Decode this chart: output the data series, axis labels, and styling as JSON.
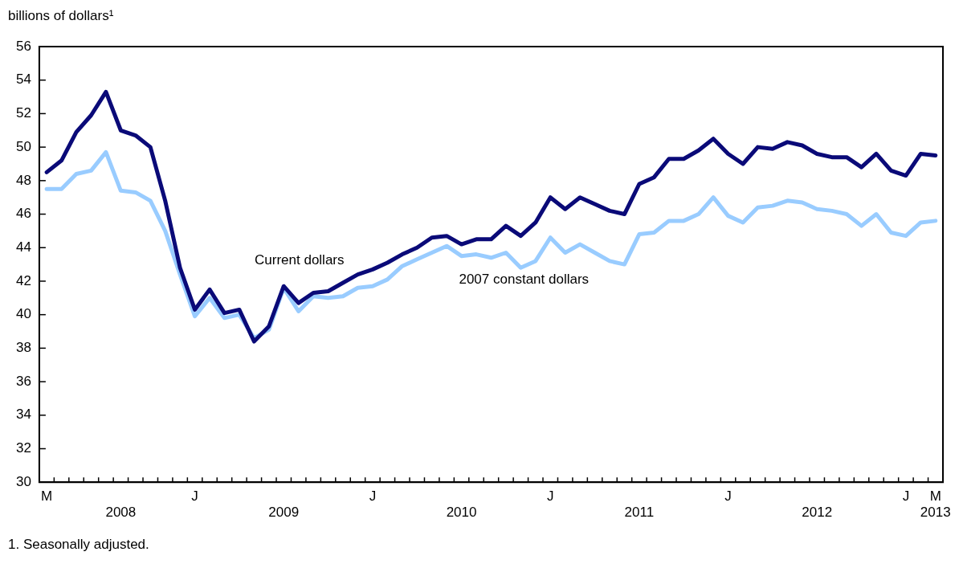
{
  "chart_data": {
    "type": "line",
    "ylabel": "billions of dollars¹",
    "annotations": [
      "1. Seasonally adjusted."
    ],
    "categories": [
      "M",
      null,
      null,
      null,
      null,
      "\n2008",
      null,
      null,
      null,
      null,
      "J",
      null,
      null,
      null,
      null,
      null,
      "\n2009",
      null,
      null,
      null,
      null,
      null,
      "J",
      null,
      null,
      null,
      null,
      null,
      "\n2010",
      null,
      null,
      null,
      null,
      null,
      "J",
      null,
      null,
      null,
      null,
      null,
      "\n2011",
      null,
      null,
      null,
      null,
      null,
      "J",
      null,
      null,
      null,
      null,
      null,
      "\n2012",
      null,
      null,
      null,
      null,
      null,
      "J",
      null,
      "M\n2013"
    ],
    "series": [
      {
        "name": "Current dollars",
        "color": "#0a0a78",
        "values": [
          48.5,
          49.2,
          50.9,
          51.9,
          53.3,
          51.0,
          50.7,
          50.0,
          46.8,
          42.8,
          40.3,
          41.5,
          40.1,
          40.3,
          38.4,
          39.3,
          41.7,
          40.7,
          41.3,
          41.4,
          41.9,
          42.4,
          42.7,
          43.1,
          43.6,
          44.0,
          44.6,
          44.7,
          44.2,
          44.5,
          44.5,
          45.3,
          44.7,
          45.5,
          47.0,
          46.3,
          47.0,
          46.6,
          46.2,
          46.0,
          47.8,
          48.2,
          49.3,
          49.3,
          49.8,
          50.5,
          49.6,
          49.0,
          50.0,
          49.9,
          50.3,
          50.1,
          49.6,
          49.4,
          49.4,
          48.8,
          49.6,
          48.6,
          48.3,
          49.6,
          49.5
        ]
      },
      {
        "name": "2007 constant dollars",
        "color": "#99ccff",
        "values": [
          47.5,
          47.5,
          48.4,
          48.6,
          49.7,
          47.4,
          47.3,
          46.8,
          45.0,
          42.4,
          39.9,
          41.0,
          39.8,
          40.0,
          38.6,
          39.1,
          41.6,
          40.2,
          41.1,
          41.0,
          41.1,
          41.6,
          41.7,
          42.1,
          42.9,
          43.3,
          43.7,
          44.1,
          43.5,
          43.6,
          43.4,
          43.7,
          42.8,
          43.2,
          44.6,
          43.7,
          44.2,
          43.7,
          43.2,
          43.0,
          44.8,
          44.9,
          45.6,
          45.6,
          46.0,
          47.0,
          45.9,
          45.5,
          46.4,
          46.5,
          46.8,
          46.7,
          46.3,
          46.2,
          46.0,
          45.3,
          46.0,
          44.9,
          44.7,
          45.5,
          45.6
        ]
      }
    ],
    "ylim": [
      30,
      56
    ],
    "yticks": [
      30,
      32,
      34,
      36,
      38,
      40,
      42,
      44,
      46,
      48,
      50,
      52,
      54,
      56
    ],
    "grid": false,
    "legend": false,
    "marker": "none",
    "line_style": "solid"
  }
}
